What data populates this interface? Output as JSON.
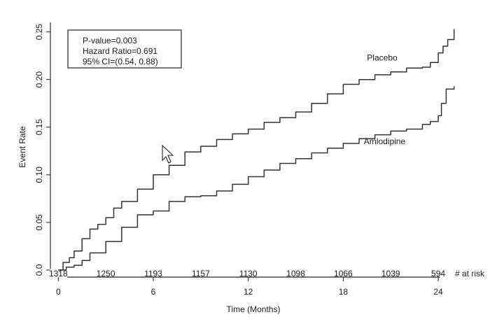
{
  "chart_data": {
    "type": "line",
    "title": "",
    "xlabel": "Time (Months)",
    "ylabel": "Event Rate",
    "xlim": [
      -0.5,
      25.5
    ],
    "ylim": [
      -0.003,
      0.26
    ],
    "x_ticks": [
      0,
      6,
      12,
      18,
      24
    ],
    "y_ticks": [
      0.0,
      0.05,
      0.1,
      0.15,
      0.2,
      0.25
    ],
    "y_tick_labels": [
      "0.0",
      "0.05",
      "0.10",
      "0.15",
      "0.20",
      "0.25"
    ],
    "grid": false,
    "legend_text": [
      "P-value=0.003",
      "Hazard Ratio=0.691",
      "95% CI=(0.54, 0.88)"
    ],
    "at_risk_label": "# at risk",
    "at_risk": [
      {
        "x": 0,
        "label": "1318"
      },
      {
        "x": 3,
        "label": "1250"
      },
      {
        "x": 6,
        "label": "1193"
      },
      {
        "x": 9,
        "label": "1157"
      },
      {
        "x": 12,
        "label": "1130"
      },
      {
        "x": 15,
        "label": "1098"
      },
      {
        "x": 18,
        "label": "1066"
      },
      {
        "x": 21,
        "label": "1039"
      },
      {
        "x": 24,
        "label": "594"
      }
    ],
    "series": [
      {
        "name": "Placebo",
        "x": [
          0,
          0.3,
          0.7,
          1,
          1.5,
          2,
          2.5,
          3,
          3.5,
          4,
          5,
          6,
          7,
          8,
          9,
          10,
          11,
          12,
          13,
          14,
          15,
          16,
          17,
          18,
          19,
          20,
          21,
          22,
          23,
          23.5,
          24,
          24.3,
          24.6,
          25
        ],
        "y": [
          0.0,
          0.008,
          0.013,
          0.02,
          0.033,
          0.043,
          0.048,
          0.055,
          0.065,
          0.072,
          0.085,
          0.1,
          0.11,
          0.124,
          0.13,
          0.137,
          0.143,
          0.148,
          0.155,
          0.16,
          0.166,
          0.175,
          0.185,
          0.195,
          0.2,
          0.205,
          0.208,
          0.212,
          0.213,
          0.218,
          0.228,
          0.235,
          0.242,
          0.253
        ]
      },
      {
        "name": "Amlodipine",
        "x": [
          0,
          0.5,
          1,
          1.5,
          2,
          3,
          4,
          5,
          6,
          7,
          8,
          9,
          10,
          11,
          12,
          13,
          14,
          15,
          16,
          17,
          18,
          19,
          20,
          21,
          22,
          23,
          23.5,
          24,
          24.2,
          24.5,
          25
        ],
        "y": [
          0.0,
          0.003,
          0.005,
          0.01,
          0.018,
          0.03,
          0.045,
          0.058,
          0.062,
          0.072,
          0.077,
          0.078,
          0.083,
          0.09,
          0.098,
          0.105,
          0.112,
          0.117,
          0.123,
          0.128,
          0.133,
          0.138,
          0.142,
          0.146,
          0.148,
          0.153,
          0.156,
          0.162,
          0.175,
          0.19,
          0.193
        ]
      }
    ],
    "series_label_positions": [
      {
        "name": "Placebo",
        "x": 19.5,
        "y": 0.22
      },
      {
        "name": "Amlodipine",
        "x": 19.3,
        "y": 0.132
      }
    ],
    "colors": {
      "curve": "#333333",
      "text": "#1a1a1a",
      "background": "#ffffff"
    }
  },
  "overlay": {
    "cursor": "mouse-pointer-icon"
  }
}
